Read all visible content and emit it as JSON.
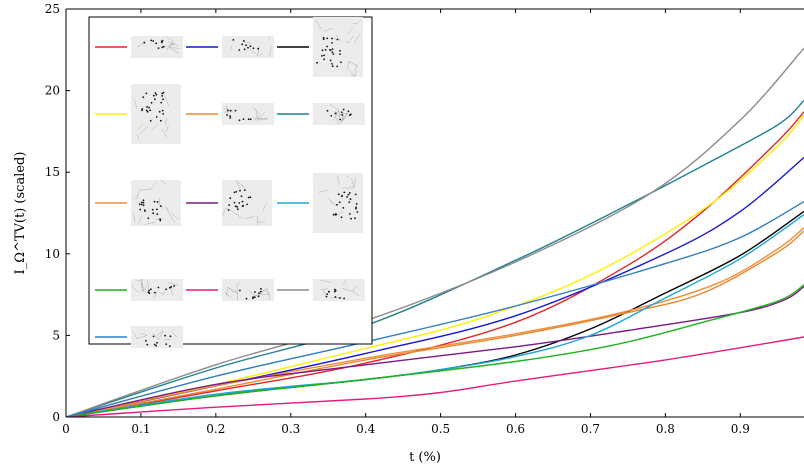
{
  "chart_data": {
    "type": "line",
    "xlabel": "t (%)",
    "ylabel": "I_Ω^TV(t) (scaled)",
    "xlim": [
      0,
      0.985
    ],
    "ylim": [
      0,
      25
    ],
    "xticks": [
      "0",
      "0.1",
      "0.2",
      "0.3",
      "0.4",
      "0.5",
      "0.6",
      "0.7",
      "0.8",
      "0.9"
    ],
    "yticks": [
      "0",
      "5",
      "10",
      "15",
      "20",
      "25"
    ],
    "grid": false,
    "legend_position": "top-left",
    "legend_layout": "3 columns, mesh thumbnails as entry labels",
    "series": [
      {
        "color": "#e3262b",
        "legend_icon": "mesh-thumbnail-wide",
        "points": [
          [
            0,
            0
          ],
          [
            0.2,
            1.6
          ],
          [
            0.4,
            3.3
          ],
          [
            0.6,
            5.8
          ],
          [
            0.75,
            9.3
          ],
          [
            0.85,
            12.6
          ],
          [
            0.95,
            16.9
          ],
          [
            0.985,
            18.7
          ]
        ]
      },
      {
        "color": "#1515d4",
        "legend_icon": "mesh-thumbnail-wide",
        "points": [
          [
            0,
            0
          ],
          [
            0.2,
            1.9
          ],
          [
            0.4,
            3.9
          ],
          [
            0.6,
            6.2
          ],
          [
            0.8,
            10.0
          ],
          [
            0.9,
            12.6
          ],
          [
            0.985,
            15.9
          ]
        ]
      },
      {
        "color": "#000000",
        "legend_icon": "mesh-thumbnail-tall",
        "points": [
          [
            0,
            0
          ],
          [
            0.2,
            1.3
          ],
          [
            0.4,
            2.3
          ],
          [
            0.5,
            2.9
          ],
          [
            0.6,
            3.8
          ],
          [
            0.7,
            5.4
          ],
          [
            0.8,
            7.6
          ],
          [
            0.9,
            9.9
          ],
          [
            0.985,
            12.6
          ]
        ]
      },
      {
        "color": "#ffef00",
        "legend_icon": "mesh-thumbnail-tall",
        "points": [
          [
            0,
            0
          ],
          [
            0.2,
            2.0
          ],
          [
            0.4,
            4.2
          ],
          [
            0.55,
            6.0
          ],
          [
            0.7,
            8.7
          ],
          [
            0.85,
            12.7
          ],
          [
            0.95,
            16.6
          ],
          [
            0.985,
            18.5
          ]
        ]
      },
      {
        "color": "#e68a2e",
        "legend_icon": "mesh-thumbnail-wide",
        "points": [
          [
            0,
            0
          ],
          [
            0.2,
            1.7
          ],
          [
            0.4,
            3.5
          ],
          [
            0.6,
            5.0
          ],
          [
            0.75,
            6.4
          ],
          [
            0.85,
            7.6
          ],
          [
            0.95,
            10.1
          ],
          [
            0.985,
            11.4
          ]
        ]
      },
      {
        "color": "#21828f",
        "legend_icon": "mesh-thumbnail-wide",
        "points": [
          [
            0,
            0
          ],
          [
            0.2,
            3.0
          ],
          [
            0.4,
            5.6
          ],
          [
            0.6,
            9.6
          ],
          [
            0.75,
            13.0
          ],
          [
            0.85,
            15.4
          ],
          [
            0.95,
            17.9
          ],
          [
            0.985,
            19.4
          ]
        ]
      },
      {
        "color": "#f08c3c",
        "legend_icon": "mesh-thumbnail-square",
        "points": [
          [
            0,
            0
          ],
          [
            0.2,
            1.9
          ],
          [
            0.4,
            3.6
          ],
          [
            0.6,
            5.1
          ],
          [
            0.75,
            6.5
          ],
          [
            0.87,
            8.2
          ],
          [
            0.95,
            10.3
          ],
          [
            0.985,
            11.6
          ]
        ]
      },
      {
        "color": "#7a1a85",
        "legend_icon": "mesh-thumbnail-square",
        "points": [
          [
            0,
            0
          ],
          [
            0.2,
            2.0
          ],
          [
            0.4,
            3.2
          ],
          [
            0.6,
            4.3
          ],
          [
            0.75,
            5.3
          ],
          [
            0.9,
            6.4
          ],
          [
            0.96,
            7.2
          ],
          [
            0.985,
            8.0
          ]
        ]
      },
      {
        "color": "#1aa7d9",
        "legend_icon": "mesh-thumbnail-tall",
        "points": [
          [
            0,
            0
          ],
          [
            0.2,
            1.4
          ],
          [
            0.4,
            2.3
          ],
          [
            0.5,
            2.9
          ],
          [
            0.6,
            3.7
          ],
          [
            0.7,
            5.0
          ],
          [
            0.8,
            7.3
          ],
          [
            0.9,
            9.7
          ],
          [
            0.985,
            12.4
          ]
        ]
      },
      {
        "color": "#1fb21f",
        "legend_icon": "mesh-thumbnail-wide",
        "points": [
          [
            0,
            0
          ],
          [
            0.2,
            1.3
          ],
          [
            0.4,
            2.3
          ],
          [
            0.6,
            3.4
          ],
          [
            0.73,
            4.4
          ],
          [
            0.85,
            5.8
          ],
          [
            0.95,
            7.1
          ],
          [
            0.985,
            8.1
          ]
        ]
      },
      {
        "color": "#e6197d",
        "legend_icon": "mesh-thumbnail-wide",
        "points": [
          [
            0,
            0
          ],
          [
            0.2,
            0.6
          ],
          [
            0.4,
            1.1
          ],
          [
            0.5,
            1.5
          ],
          [
            0.6,
            2.2
          ],
          [
            0.8,
            3.5
          ],
          [
            0.985,
            4.9
          ]
        ]
      },
      {
        "color": "#8c8c8c",
        "legend_icon": "mesh-thumbnail-wide",
        "points": [
          [
            0,
            0
          ],
          [
            0.2,
            3.2
          ],
          [
            0.4,
            5.9
          ],
          [
            0.6,
            9.5
          ],
          [
            0.78,
            13.7
          ],
          [
            0.9,
            18.2
          ],
          [
            0.985,
            22.6
          ]
        ]
      },
      {
        "color": "#2f7fbf",
        "legend_icon": "mesh-thumbnail-wide",
        "points": [
          [
            0,
            0
          ],
          [
            0.2,
            2.5
          ],
          [
            0.4,
            4.6
          ],
          [
            0.6,
            6.8
          ],
          [
            0.8,
            9.4
          ],
          [
            0.9,
            11.0
          ],
          [
            0.985,
            13.2
          ]
        ]
      }
    ]
  }
}
